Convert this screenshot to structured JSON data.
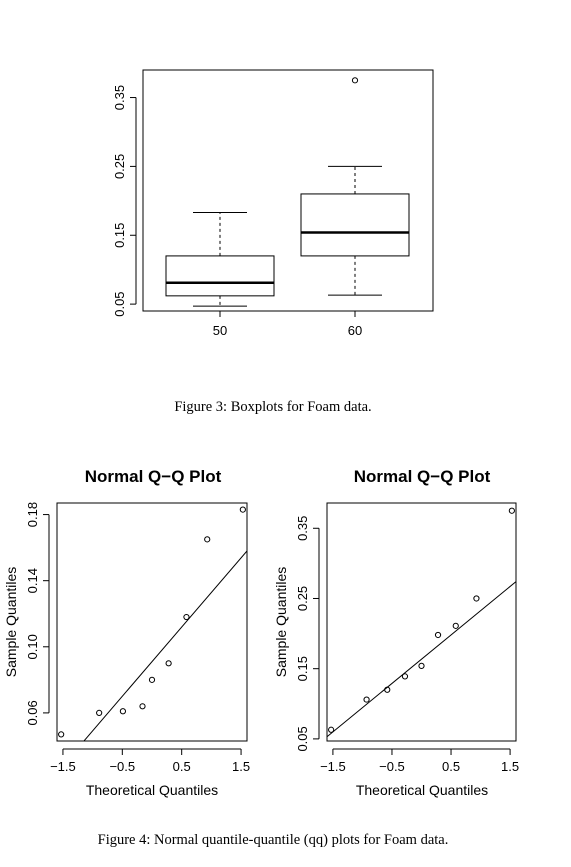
{
  "chart_data": [
    {
      "type": "boxplot",
      "title": "",
      "xlabel": "",
      "ylabel": "",
      "categories": [
        "50",
        "60"
      ],
      "ylim": [
        0.04,
        0.39
      ],
      "yticks": [
        0.05,
        0.15,
        0.25,
        0.35
      ],
      "ytick_labels": [
        "0.05",
        "0.15",
        "0.25",
        "0.35"
      ],
      "boxes": [
        {
          "category": "50",
          "whisker_low": 0.047,
          "q1": 0.062,
          "median": 0.081,
          "q3": 0.12,
          "whisker_high": 0.183,
          "outliers": []
        },
        {
          "category": "60",
          "whisker_low": 0.063,
          "q1": 0.12,
          "median": 0.154,
          "q3": 0.21,
          "whisker_high": 0.25,
          "outliers": [
            0.375
          ]
        }
      ],
      "caption": "Figure 3: Boxplots for Foam data."
    },
    {
      "type": "scatter",
      "title": "Normal Q−Q Plot",
      "xlabel": "Theoretical Quantiles",
      "ylabel": "Sample Quantiles",
      "xlim": [
        -1.6,
        1.6
      ],
      "ylim": [
        0.043,
        0.187
      ],
      "xticks": [
        -1.5,
        -0.5,
        0.5,
        1.5
      ],
      "xtick_labels": [
        "−1.5",
        "−0.5",
        "0.5",
        "1.5"
      ],
      "yticks": [
        0.06,
        0.1,
        0.14,
        0.18
      ],
      "ytick_labels": [
        "0.06",
        "0.10",
        "0.14",
        "0.18"
      ],
      "points": [
        {
          "x": -1.53,
          "y": 0.047
        },
        {
          "x": -0.89,
          "y": 0.06
        },
        {
          "x": -0.49,
          "y": 0.061
        },
        {
          "x": -0.16,
          "y": 0.064
        },
        {
          "x": 0.0,
          "y": 0.08
        },
        {
          "x": 0.28,
          "y": 0.09
        },
        {
          "x": 0.58,
          "y": 0.118
        },
        {
          "x": 0.93,
          "y": 0.165
        },
        {
          "x": 1.53,
          "y": 0.183
        }
      ],
      "line": {
        "x1": -1.6,
        "y1": 0.024,
        "x2": 1.6,
        "y2": 0.158
      }
    },
    {
      "type": "scatter",
      "title": "Normal Q−Q Plot",
      "xlabel": "Theoretical Quantiles",
      "ylabel": "Sample Quantiles",
      "xlim": [
        -1.6,
        1.6
      ],
      "ylim": [
        0.047,
        0.386
      ],
      "xticks": [
        -1.5,
        -0.5,
        0.5,
        1.5
      ],
      "xtick_labels": [
        "−1.5",
        "−0.5",
        "0.5",
        "1.5"
      ],
      "yticks": [
        0.05,
        0.15,
        0.25,
        0.35
      ],
      "ytick_labels": [
        "0.05",
        "0.15",
        "0.25",
        "0.35"
      ],
      "points": [
        {
          "x": -1.53,
          "y": 0.063
        },
        {
          "x": -0.93,
          "y": 0.106
        },
        {
          "x": -0.58,
          "y": 0.12
        },
        {
          "x": -0.28,
          "y": 0.139
        },
        {
          "x": 0.0,
          "y": 0.154
        },
        {
          "x": 0.28,
          "y": 0.198
        },
        {
          "x": 0.58,
          "y": 0.211
        },
        {
          "x": 0.93,
          "y": 0.25
        },
        {
          "x": 1.53,
          "y": 0.375
        }
      ],
      "line": {
        "x1": -1.6,
        "y1": 0.053,
        "x2": 1.6,
        "y2": 0.274
      },
      "caption": "Figure 4: Normal quantile-quantile (qq) plots for Foam data."
    }
  ],
  "captions": {
    "figure3": "Figure 3: Boxplots for Foam data.",
    "figure4": "Figure 4: Normal quantile-quantile (qq) plots for Foam data."
  }
}
